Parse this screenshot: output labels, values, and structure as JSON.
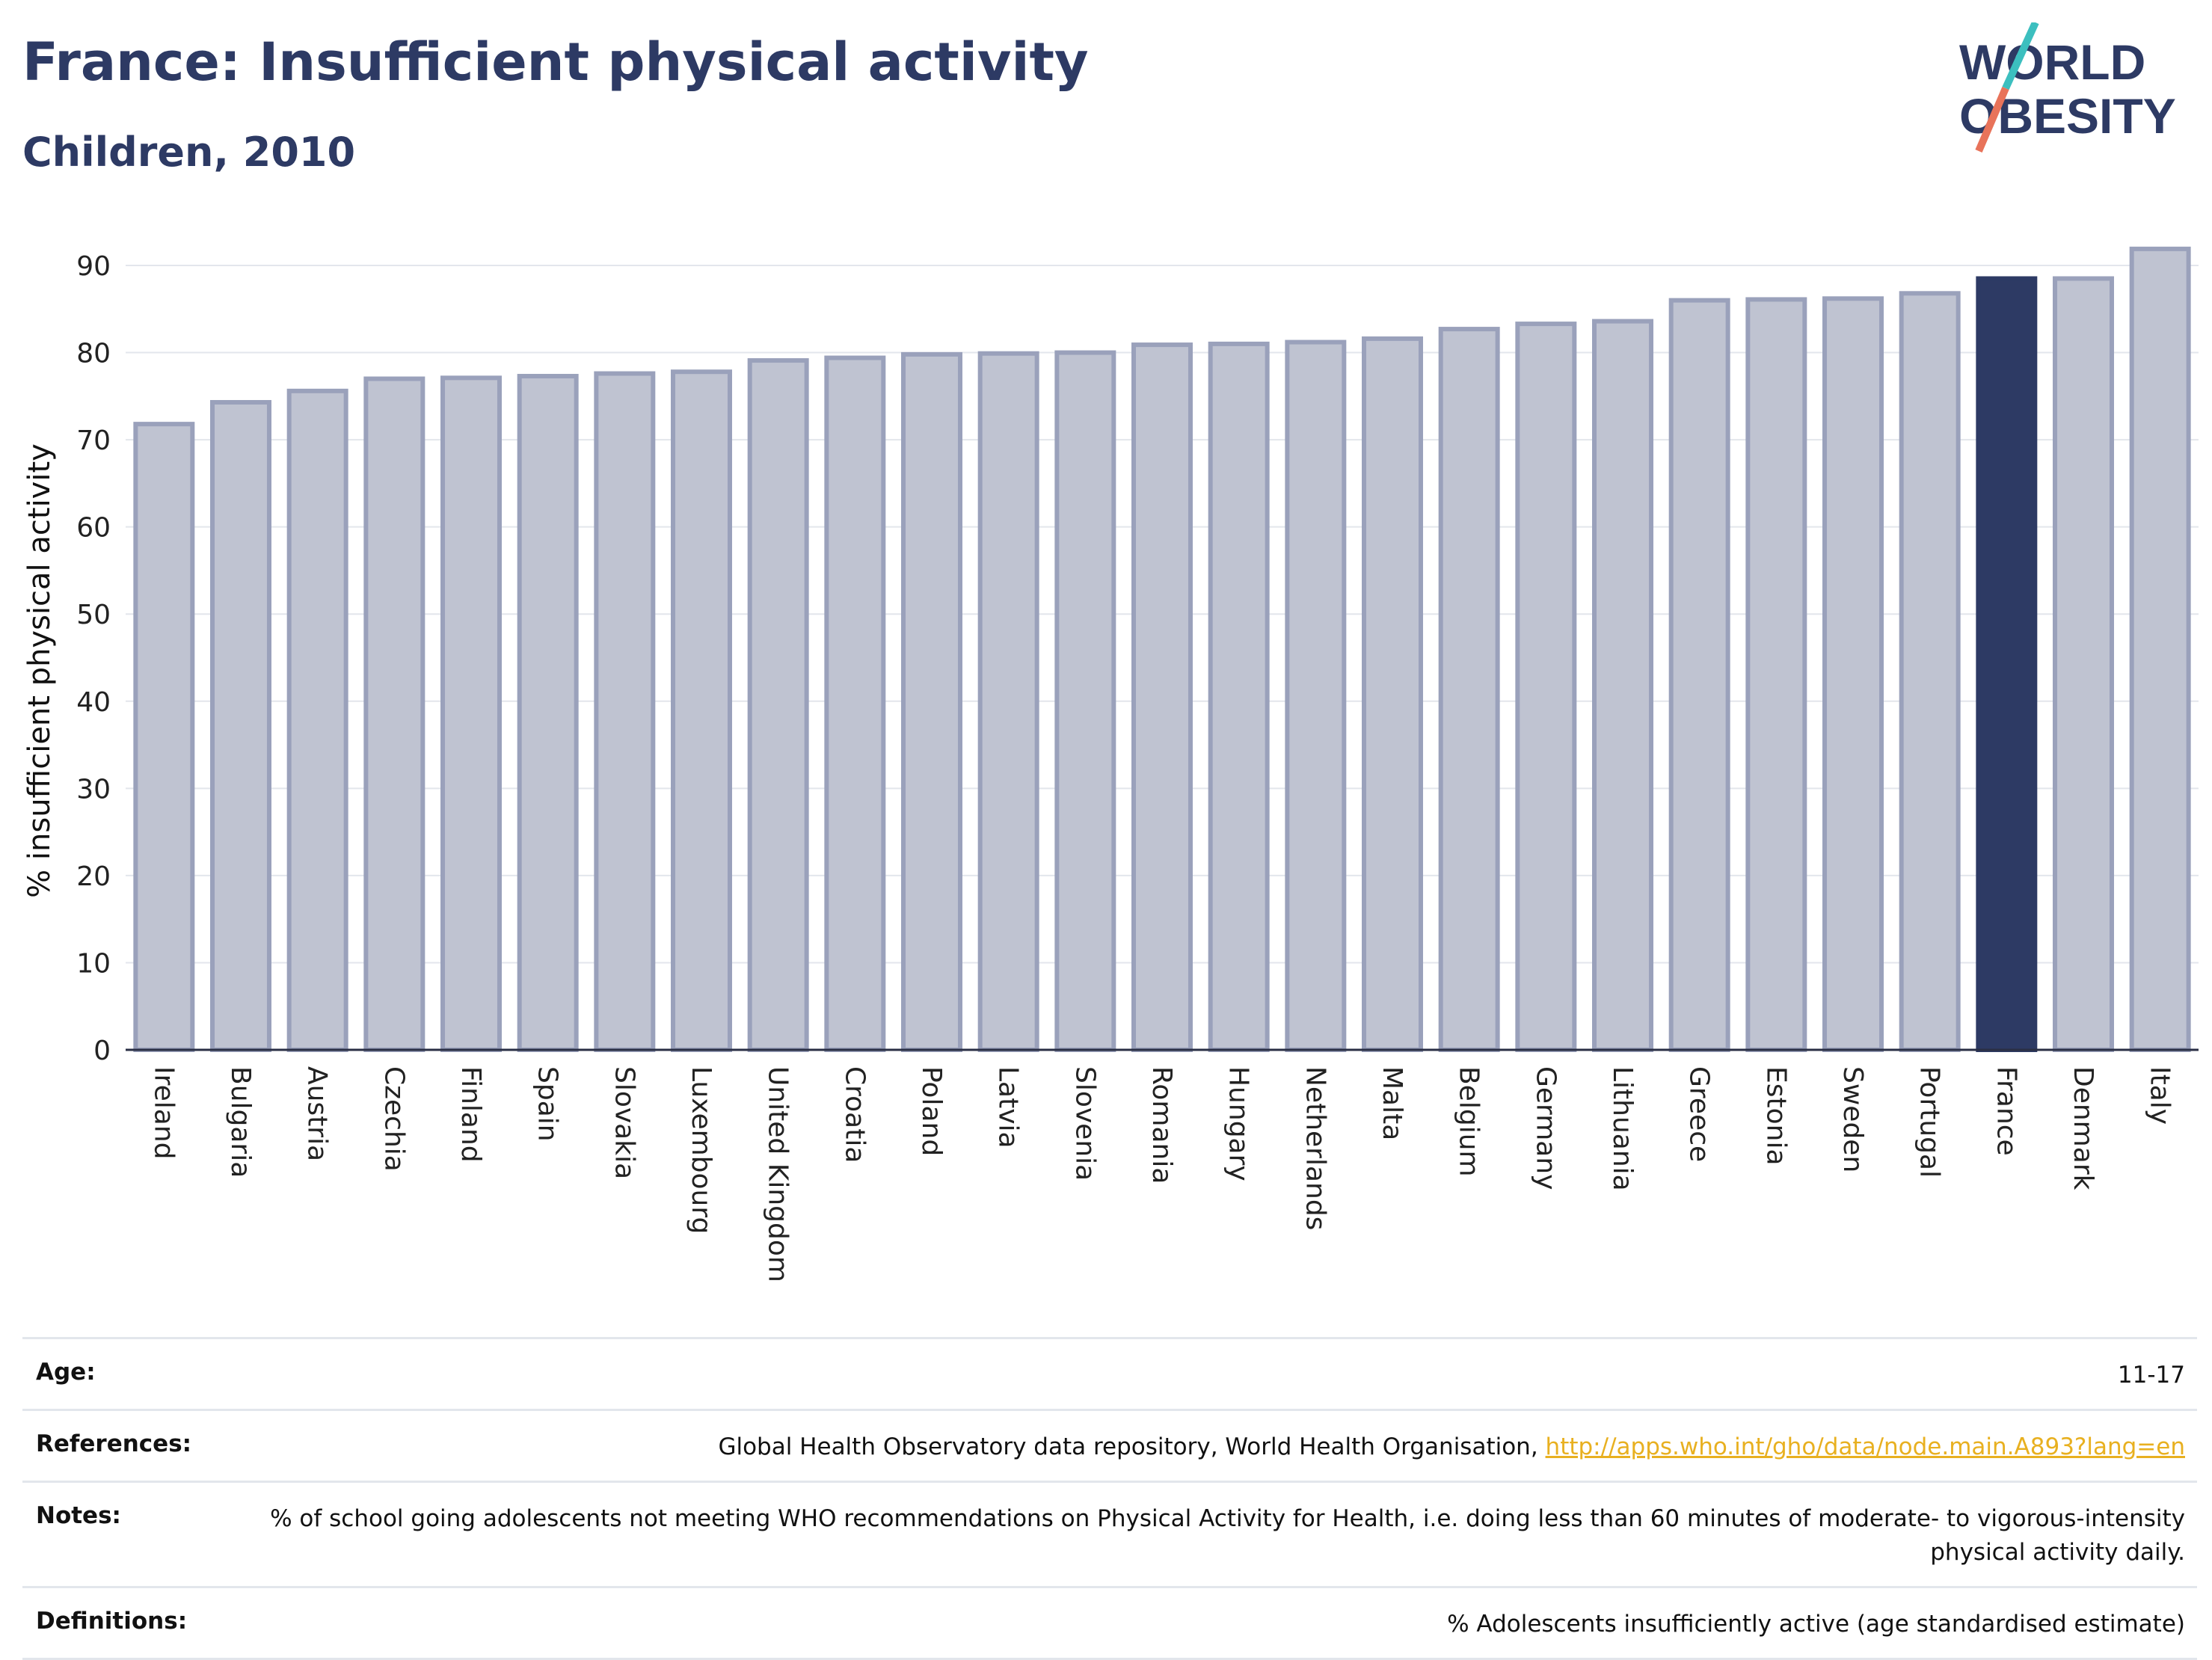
{
  "header": {
    "title": "France: Insufficient physical activity",
    "subtitle": "Children, 2010",
    "logo_line1": "WORLD",
    "logo_line2": "OBESITY"
  },
  "colors": {
    "bar_fill": "#bfc3d1",
    "bar_stroke": "#9aa1bb",
    "highlight": "#2d3a64",
    "title": "#2d3a64",
    "link": "#e8b020",
    "logo_teal": "#3cbfbf",
    "logo_coral": "#e8735a"
  },
  "chart_data": {
    "type": "bar",
    "ylabel": "% insufficient physical activity",
    "ylim": [
      0,
      92
    ],
    "yticks": [
      0,
      10,
      20,
      30,
      40,
      50,
      60,
      70,
      80,
      90
    ],
    "grid": true,
    "highlight": "France",
    "categories": [
      "Ireland",
      "Bulgaria",
      "Austria",
      "Czechia",
      "Finland",
      "Spain",
      "Slovakia",
      "Luxembourg",
      "United Kingdom",
      "Croatia",
      "Poland",
      "Latvia",
      "Slovenia",
      "Romania",
      "Hungary",
      "Netherlands",
      "Malta",
      "Belgium",
      "Germany",
      "Lithuania",
      "Greece",
      "Estonia",
      "Sweden",
      "Portugal",
      "France",
      "Denmark",
      "Italy"
    ],
    "values": [
      71.8,
      74.3,
      75.6,
      77.0,
      77.1,
      77.3,
      77.6,
      77.8,
      79.1,
      79.4,
      79.8,
      79.9,
      80.0,
      80.9,
      81.0,
      81.2,
      81.6,
      82.7,
      83.3,
      83.6,
      86.0,
      86.1,
      86.2,
      86.8,
      88.5,
      88.5,
      91.9
    ]
  },
  "info_table": [
    {
      "key": "Age:",
      "value": "11-17"
    },
    {
      "key": "References:",
      "value": "Global Health Observatory data repository, World Health Organisation, ",
      "link": "http://apps.who.int/gho/data/node.main.A893?lang=en"
    },
    {
      "key": "Notes:",
      "value": "% of school going adolescents not meeting WHO recommendations on Physical Activity for Health, i.e. doing less than 60 minutes of moderate- to vigorous-intensity physical activity daily."
    },
    {
      "key": "Definitions:",
      "value": "% Adolescents insufficiently active (age standardised estimate)"
    }
  ]
}
